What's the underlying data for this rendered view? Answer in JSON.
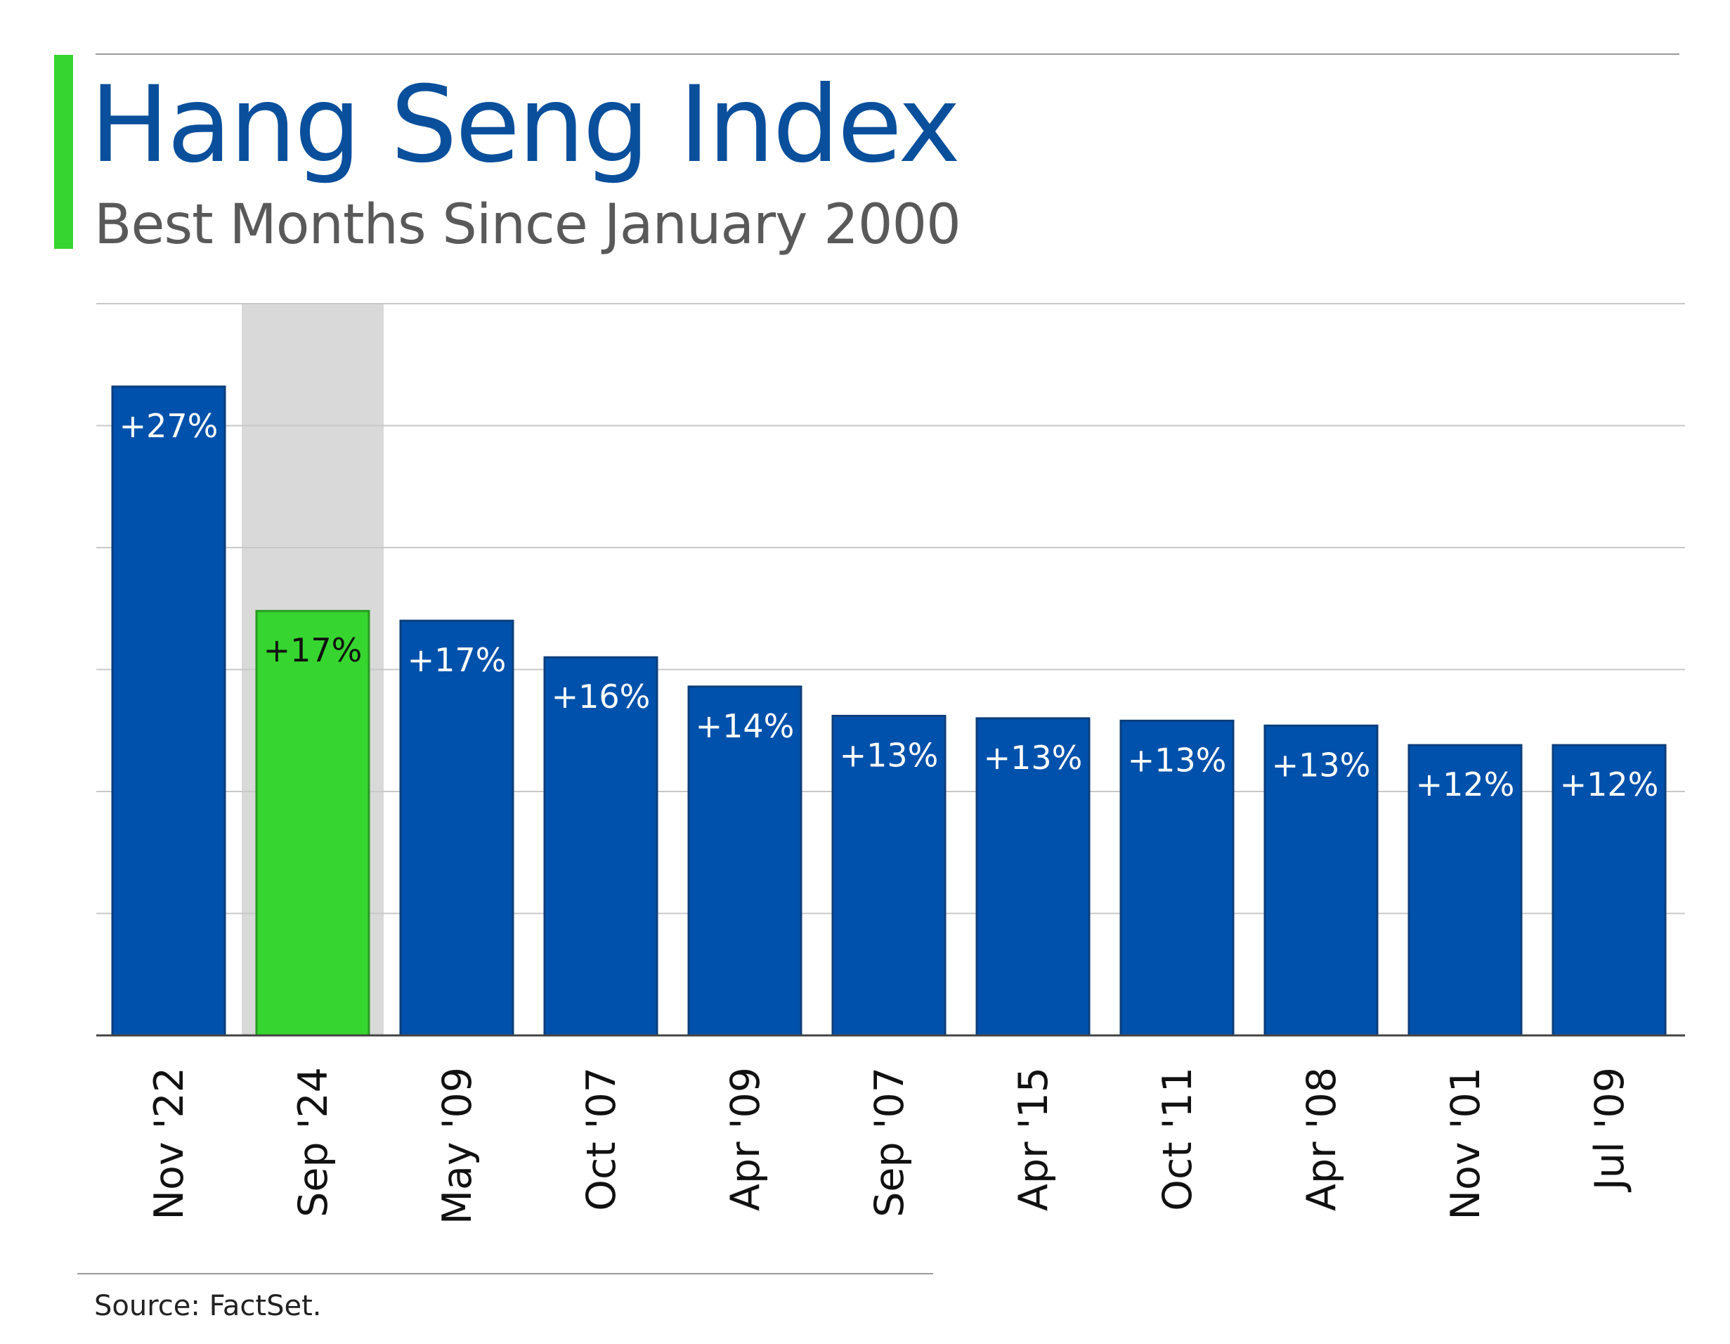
{
  "colors": {
    "bar": "#0051ab",
    "bar_edge": "#0b3e7c",
    "highlight_bar": "#36d52f",
    "highlight_edge": "#279b22",
    "highlight_band": "#d9d9d9",
    "title": "#0a4f9c",
    "grid": "#c8c8c8"
  },
  "chart_data": {
    "type": "bar",
    "title": "Hang Seng Index",
    "subtitle": "Best Months Since January 2000",
    "categories": [
      "Nov '22",
      "Sep '24",
      "May '09",
      "Oct '07",
      "Apr '09",
      "Sep '07",
      "Apr '15",
      "Oct '11",
      "Apr '08",
      "Nov '01",
      "Jul '09"
    ],
    "values": [
      26.6,
      17.4,
      17.0,
      15.5,
      14.3,
      13.1,
      13.0,
      12.9,
      12.7,
      11.9,
      11.9
    ],
    "data_labels": [
      "+27%",
      "+17%",
      "+17%",
      "+16%",
      "+14%",
      "+13%",
      "+13%",
      "+13%",
      "+13%",
      "+12%",
      "+12%"
    ],
    "highlight_index": 1,
    "ylim": [
      0,
      30
    ],
    "grid": true,
    "xlabel": "",
    "ylabel": "",
    "source": "Source: FactSet."
  }
}
